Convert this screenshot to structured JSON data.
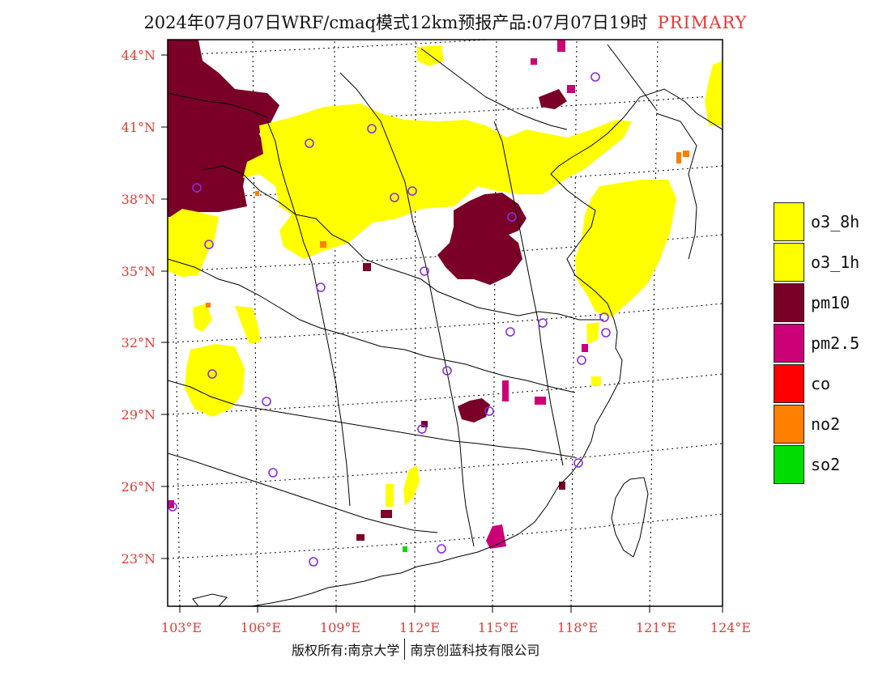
{
  "title": {
    "main": "2024年07月07日WRF/cmaq模式12km预报产品:07月07日19时",
    "suffix": "PRIMARY"
  },
  "map": {
    "lat_labels": [
      "44°N",
      "41°N",
      "38°N",
      "35°N",
      "32°N",
      "29°N",
      "26°N",
      "23°N"
    ],
    "lon_labels": [
      "103°E",
      "106°E",
      "109°E",
      "112°E",
      "115°E",
      "118°E",
      "121°E",
      "124°E"
    ],
    "axis_label_color": "#e53935",
    "region_fill": "#ffffff",
    "border_color": "#000000"
  },
  "legend": {
    "items": [
      {
        "label": "o3_8h",
        "color": "#ffff00"
      },
      {
        "label": "o3_1h",
        "color": "#ffff00"
      },
      {
        "label": "pm10",
        "color": "#7b0028"
      },
      {
        "label": "pm2.5",
        "color": "#cc0077"
      },
      {
        "label": "co",
        "color": "#ff0000"
      },
      {
        "label": "no2",
        "color": "#ff7f00"
      },
      {
        "label": "so2",
        "color": "#00dd00"
      }
    ]
  },
  "pollutant_colors": {
    "o3": "#ffff00",
    "pm10": "#7b0028",
    "pm25": "#cc0077",
    "no2": "#ff7f00",
    "so2": "#00dd00",
    "station": "#8a2be2"
  },
  "footer": {
    "left": "版权所有:南京大学",
    "right": "南京创蓝科技有限公司"
  }
}
